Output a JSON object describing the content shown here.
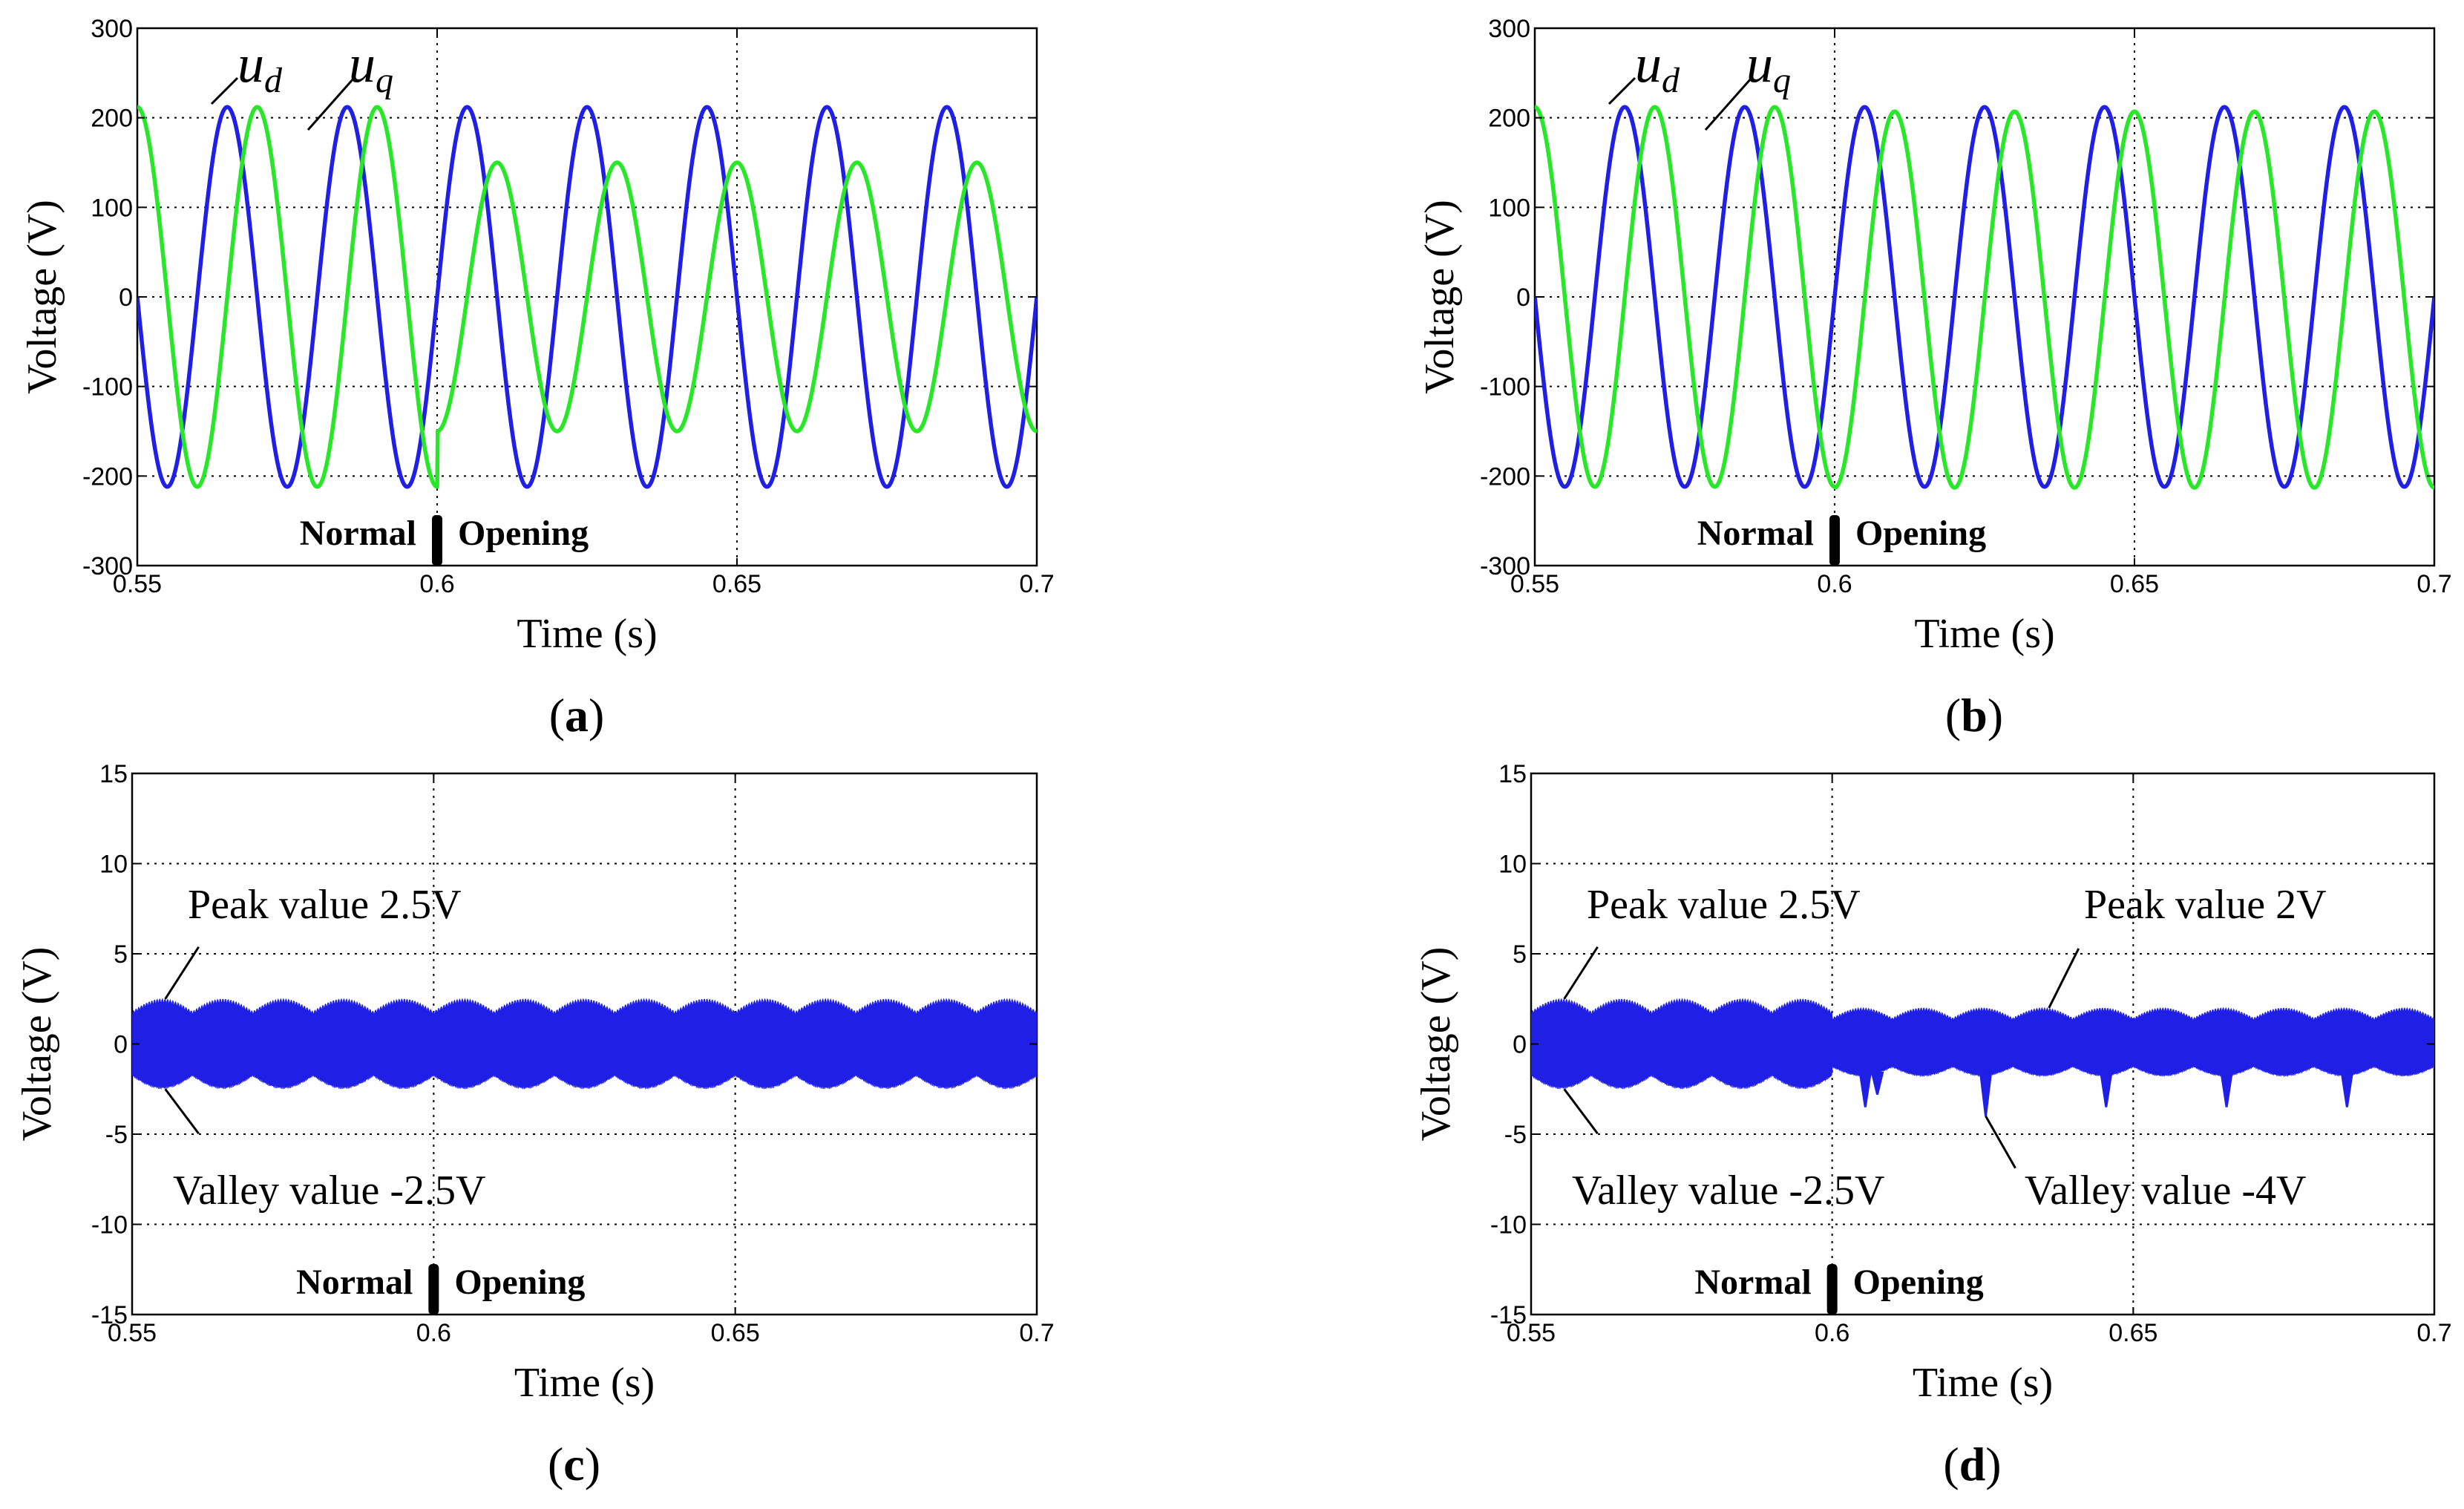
{
  "colors": {
    "ud": "#1f1fe6",
    "uq": "#28e628",
    "noise": "#1f1fe6"
  },
  "chart_data": [
    {
      "id": "a",
      "type": "line",
      "panel_label": "a",
      "xlabel": "Time  (s)",
      "ylabel": "Voltage  (V)",
      "xlim": [
        0.55,
        0.7
      ],
      "ylim": [
        -300,
        300
      ],
      "xticks": [
        0.55,
        0.6,
        0.65,
        0.7
      ],
      "xtick_labels": [
        "0.55",
        "0.6",
        "0.65",
        "0.7"
      ],
      "yticks": [
        -300,
        -200,
        -100,
        0,
        100,
        200,
        300
      ],
      "ytick_labels": [
        "-300",
        "-200",
        "-100",
        "0",
        "100",
        "200",
        "300"
      ],
      "grid": true,
      "event_time": 0.6,
      "event_left": "Normal",
      "event_right": "Opening",
      "series": [
        {
          "name": "ud",
          "symbol": "u",
          "subscript": "d",
          "frequency_hz": 50,
          "phase_deg": 0,
          "segments": [
            {
              "from": 0.55,
              "to": 0.7,
              "amplitude": 212,
              "offset": 0
            }
          ]
        },
        {
          "name": "uq",
          "symbol": "u",
          "subscript": "q",
          "frequency_hz": 50,
          "phase_deg": -90,
          "segments": [
            {
              "from": 0.55,
              "to": 0.6,
              "amplitude": 212,
              "offset": 0
            },
            {
              "from": 0.6,
              "to": 0.7,
              "amplitude": 150,
              "offset": 0
            }
          ]
        }
      ]
    },
    {
      "id": "b",
      "type": "line",
      "panel_label": "b",
      "xlabel": "Time  (s)",
      "ylabel": "Voltage  (V)",
      "xlim": [
        0.55,
        0.7
      ],
      "ylim": [
        -300,
        300
      ],
      "xticks": [
        0.55,
        0.6,
        0.65,
        0.7
      ],
      "xtick_labels": [
        "0.55",
        "0.6",
        "0.65",
        "0.7"
      ],
      "yticks": [
        -300,
        -200,
        -100,
        0,
        100,
        200,
        300
      ],
      "ytick_labels": [
        "-300",
        "-200",
        "-100",
        "0",
        "100",
        "200",
        "300"
      ],
      "grid": true,
      "event_time": 0.6,
      "event_left": "Normal",
      "event_right": "Opening",
      "series": [
        {
          "name": "ud",
          "symbol": "u",
          "subscript": "d",
          "frequency_hz": 50,
          "phase_deg": 0,
          "segments": [
            {
              "from": 0.55,
              "to": 0.7,
              "amplitude": 212,
              "offset": 0
            }
          ]
        },
        {
          "name": "uq",
          "symbol": "u",
          "subscript": "q",
          "frequency_hz": 50,
          "phase_deg": -90,
          "segments": [
            {
              "from": 0.55,
              "to": 0.6,
              "amplitude": 212,
              "offset": 0
            },
            {
              "from": 0.6,
              "to": 0.7,
              "amplitude": 210,
              "offset": -3
            }
          ]
        }
      ]
    },
    {
      "id": "c",
      "type": "area",
      "panel_label": "c",
      "xlabel": "Time  (s)",
      "ylabel": "Voltage  (V)",
      "xlim": [
        0.55,
        0.7
      ],
      "ylim": [
        -15,
        15
      ],
      "xticks": [
        0.55,
        0.6,
        0.65,
        0.7
      ],
      "xtick_labels": [
        "0.55",
        "0.6",
        "0.65",
        "0.7"
      ],
      "yticks": [
        -15,
        -10,
        -5,
        0,
        5,
        10,
        15
      ],
      "ytick_labels": [
        "-15",
        "-10",
        "-5",
        "0",
        "5",
        "10",
        "15"
      ],
      "grid": true,
      "event_time": 0.6,
      "event_left": "Normal",
      "event_right": "Opening",
      "series": [
        {
          "name": "ripple",
          "ripple_period": 0.01,
          "segments": [
            {
              "from": 0.55,
              "to": 0.7,
              "peak": 2.5,
              "valley": -2.5
            }
          ],
          "spikes": []
        }
      ],
      "annotations": [
        {
          "text": "Peak value 2.5V",
          "x": 0.5555,
          "y": 2.5
        },
        {
          "text": "Valley value -2.5V",
          "x": 0.5555,
          "y": -2.5
        }
      ]
    },
    {
      "id": "d",
      "type": "area",
      "panel_label": "d",
      "xlabel": "Time  (s)",
      "ylabel": "Voltage  (V)",
      "xlim": [
        0.55,
        0.7
      ],
      "ylim": [
        -15,
        15
      ],
      "xticks": [
        0.55,
        0.6,
        0.65,
        0.7
      ],
      "xtick_labels": [
        "0.55",
        "0.6",
        "0.65",
        "0.7"
      ],
      "yticks": [
        -15,
        -10,
        -5,
        0,
        5,
        10,
        15
      ],
      "ytick_labels": [
        "-15",
        "-10",
        "-5",
        "0",
        "5",
        "10",
        "15"
      ],
      "grid": true,
      "event_time": 0.6,
      "event_left": "Normal",
      "event_right": "Opening",
      "series": [
        {
          "name": "ripple",
          "ripple_period": 0.01,
          "segments": [
            {
              "from": 0.55,
              "to": 0.6,
              "peak": 2.5,
              "valley": -2.5
            },
            {
              "from": 0.6,
              "to": 0.7,
              "peak": 2.0,
              "valley": -1.8
            }
          ],
          "spikes": [
            {
              "x": 0.6055,
              "y": -3.5
            },
            {
              "x": 0.6075,
              "y": -2.8
            },
            {
              "x": 0.6255,
              "y": -4.0
            },
            {
              "x": 0.6455,
              "y": -3.5
            },
            {
              "x": 0.6655,
              "y": -3.5
            },
            {
              "x": 0.6855,
              "y": -3.5
            }
          ]
        }
      ],
      "annotations": [
        {
          "text": "Peak value 2.5V",
          "x": 0.5555,
          "y": 2.5
        },
        {
          "text": "Valley value -2.5V",
          "x": 0.5555,
          "y": -2.5
        },
        {
          "text": "Peak value 2V",
          "x": 0.636,
          "y": 2.0
        },
        {
          "text": "Valley value -4V",
          "x": 0.6255,
          "y": -4.0
        }
      ]
    }
  ]
}
